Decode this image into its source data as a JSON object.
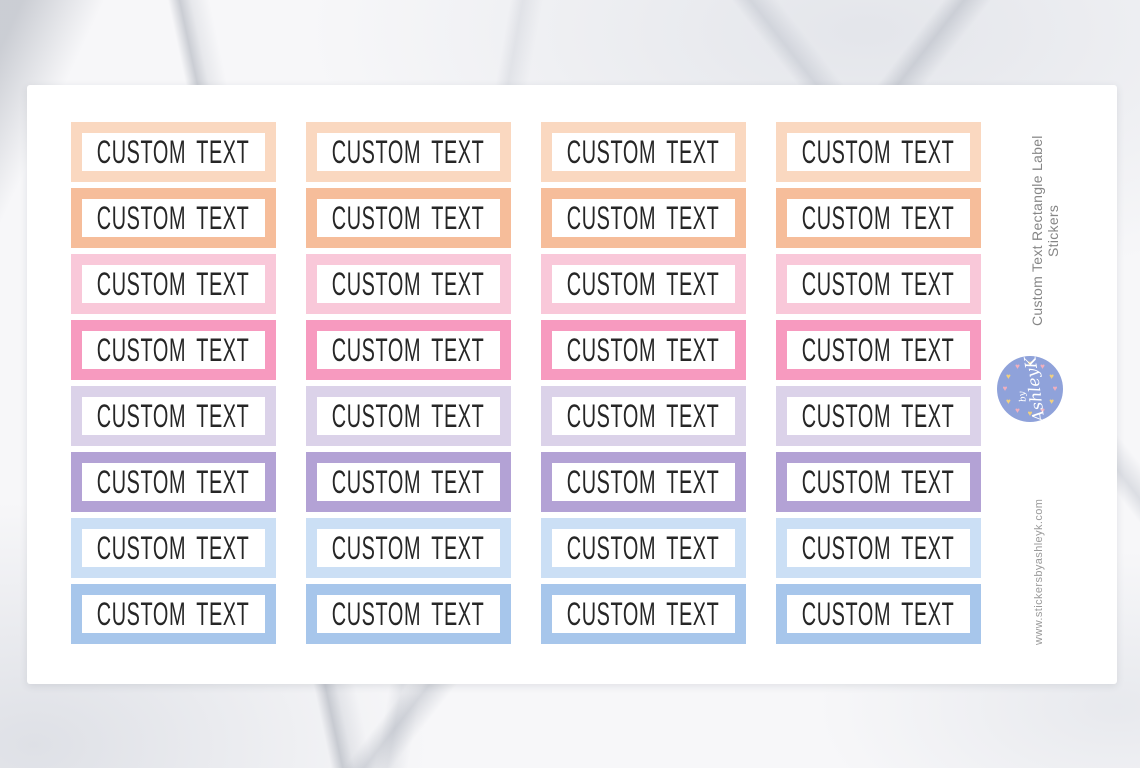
{
  "page": {
    "background_style": "white-marble",
    "card_color": "#ffffff"
  },
  "sticker_sheet": {
    "label_text": "CUSTOM TEXT",
    "text_color": "#262626",
    "columns": 4,
    "rows": [
      {
        "name": "peach-light",
        "color": "#FAD8C0"
      },
      {
        "name": "peach",
        "color": "#F6BD9A"
      },
      {
        "name": "pink-light",
        "color": "#F9C8D9"
      },
      {
        "name": "pink",
        "color": "#F79ABF"
      },
      {
        "name": "lavender-light",
        "color": "#DBD2E9"
      },
      {
        "name": "purple",
        "color": "#B3A2D5"
      },
      {
        "name": "blue-light",
        "color": "#CBDFF5"
      },
      {
        "name": "blue",
        "color": "#A7C6EB"
      }
    ]
  },
  "side_panel": {
    "title": "Custom Text Rectangle Label Stickers",
    "website": "www.stickersbyashleyk.com",
    "text_color": "#868686",
    "logo": {
      "text_by": "by",
      "text_name": "AshleyK",
      "circle_color": "#8FA2DA",
      "heart_colors": [
        "#F1D07E",
        "#F0AFBE"
      ],
      "heart_count": 12,
      "heart_icon": "♥"
    }
  }
}
